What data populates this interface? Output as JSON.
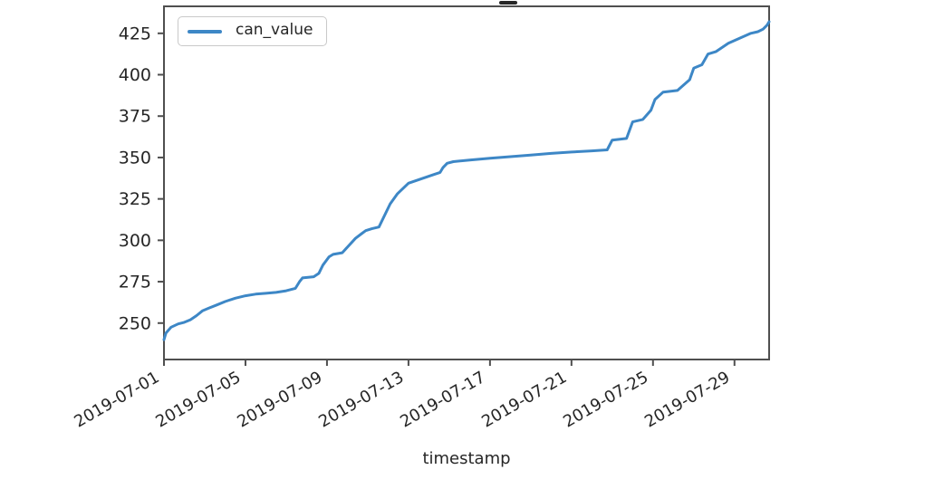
{
  "colors": {
    "line": "#3d87c6",
    "spine": "#4f4f4f",
    "text": "#262626",
    "legend_border": "#c9c9c9",
    "background": "#ffffff"
  },
  "chart_data": {
    "type": "line",
    "title_visible_fragment": "_",
    "xlabel": "timestamp",
    "x_unit": "days since 2019-07-01",
    "xlim": [
      0,
      29.7
    ],
    "ylim": [
      228,
      441.3
    ],
    "grid": false,
    "legend": {
      "position": "upper-left",
      "entries": [
        "can_value"
      ]
    },
    "x_ticks": {
      "offsets": [
        0,
        4,
        8,
        12,
        16,
        20,
        24,
        28
      ],
      "labels": [
        "2019-07-01",
        "2019-07-05",
        "2019-07-09",
        "2019-07-13",
        "2019-07-17",
        "2019-07-21",
        "2019-07-25",
        "2019-07-29"
      ]
    },
    "y_ticks": [
      250,
      275,
      300,
      325,
      350,
      375,
      400,
      425
    ],
    "series": [
      {
        "name": "can_value",
        "color": "#3d87c6",
        "points": [
          [
            0,
            240
          ],
          [
            0.1,
            244
          ],
          [
            0.35,
            247.5
          ],
          [
            0.7,
            249.5
          ],
          [
            1,
            250.5
          ],
          [
            1.3,
            252
          ],
          [
            1.6,
            254.5
          ],
          [
            1.9,
            257.5
          ],
          [
            2.2,
            259
          ],
          [
            2.6,
            261
          ],
          [
            3,
            263
          ],
          [
            3.5,
            265
          ],
          [
            4,
            266.5
          ],
          [
            4.5,
            267.5
          ],
          [
            5,
            268
          ],
          [
            5.5,
            268.5
          ],
          [
            6,
            269.5
          ],
          [
            6.45,
            271
          ],
          [
            6.65,
            275
          ],
          [
            6.8,
            277.3
          ],
          [
            7.35,
            278
          ],
          [
            7.6,
            280
          ],
          [
            7.8,
            285
          ],
          [
            8.1,
            290
          ],
          [
            8.3,
            291.5
          ],
          [
            8.75,
            292.5
          ],
          [
            9,
            295.8
          ],
          [
            9.4,
            301.2
          ],
          [
            9.7,
            304
          ],
          [
            9.9,
            305.8
          ],
          [
            10.2,
            307
          ],
          [
            10.55,
            308
          ],
          [
            11.1,
            322
          ],
          [
            11.45,
            328
          ],
          [
            12,
            334.5
          ],
          [
            12.6,
            337
          ],
          [
            13.2,
            339.5
          ],
          [
            13.55,
            341
          ],
          [
            13.7,
            344
          ],
          [
            13.9,
            346.5
          ],
          [
            14.2,
            347.5
          ],
          [
            15,
            348.5
          ],
          [
            16,
            349.5
          ],
          [
            17,
            350.5
          ],
          [
            18,
            351.5
          ],
          [
            19,
            352.5
          ],
          [
            20,
            353.3
          ],
          [
            21,
            354
          ],
          [
            21.75,
            354.6
          ],
          [
            22,
            360.5
          ],
          [
            22.7,
            361.5
          ],
          [
            23,
            371.5
          ],
          [
            23.5,
            373
          ],
          [
            23.9,
            378.5
          ],
          [
            24.1,
            385
          ],
          [
            24.5,
            389.5
          ],
          [
            25.2,
            390.5
          ],
          [
            25.8,
            397
          ],
          [
            26,
            404
          ],
          [
            26.4,
            406
          ],
          [
            26.7,
            412.5
          ],
          [
            27.1,
            414
          ],
          [
            27.7,
            419
          ],
          [
            28.8,
            425
          ],
          [
            29.15,
            426
          ],
          [
            29.4,
            427.5
          ],
          [
            29.6,
            430
          ],
          [
            29.7,
            432
          ]
        ]
      }
    ]
  }
}
